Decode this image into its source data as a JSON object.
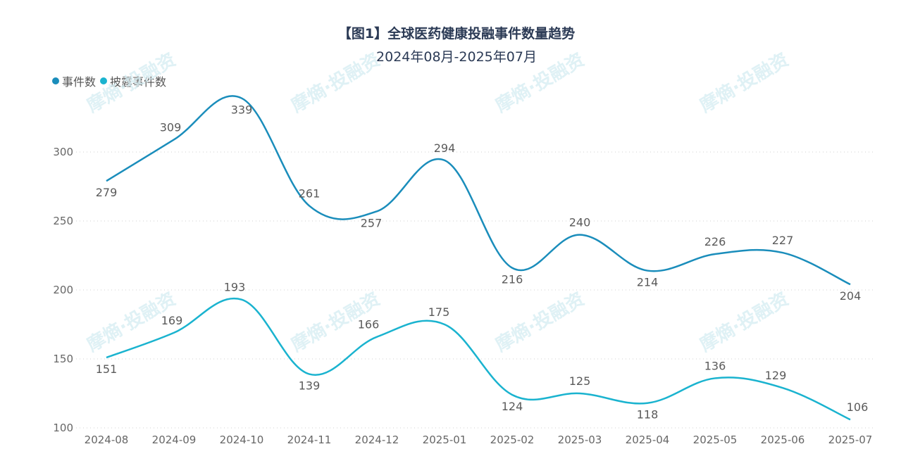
{
  "title": "【图1】全球医药健康投融事件数量趋势",
  "subtitle": "2024年08月-2025年07月",
  "legend": [
    {
      "label": "事件数",
      "color": "#1a8dbb"
    },
    {
      "label": "披露事件数",
      "color": "#1ab3cf"
    }
  ],
  "watermark": "摩熵·投融资",
  "chart_data": {
    "type": "line",
    "title": "【图1】全球医药健康投融事件数量趋势",
    "subtitle": "2024年08月-2025年07月",
    "xlabel": "",
    "ylabel": "",
    "categories": [
      "2024-08",
      "2024-09",
      "2024-10",
      "2024-11",
      "2024-12",
      "2025-01",
      "2025-02",
      "2025-03",
      "2025-04",
      "2025-05",
      "2025-06",
      "2025-07"
    ],
    "series": [
      {
        "name": "事件数",
        "color": "#1a8dbb",
        "values": [
          279,
          309,
          339,
          261,
          257,
          294,
          216,
          240,
          214,
          226,
          227,
          204
        ]
      },
      {
        "name": "披露事件数",
        "color": "#1ab3cf",
        "values": [
          151,
          169,
          193,
          139,
          166,
          175,
          124,
          125,
          118,
          136,
          129,
          106
        ]
      }
    ],
    "yticks": [
      100,
      150,
      200,
      250,
      300
    ],
    "ylim": [
      100,
      350
    ],
    "grid": "horizontal dotted",
    "legend_position": "top-left",
    "smooth": true,
    "data_labels": true
  }
}
